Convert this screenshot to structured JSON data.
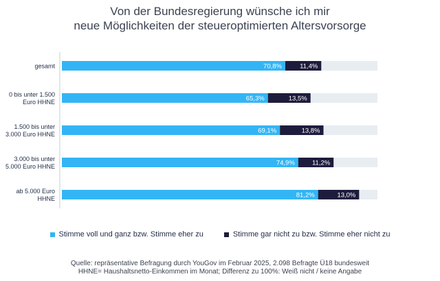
{
  "title": {
    "line1": "Von der Bundesregierung wünsche ich mir",
    "line2": "neue Möglichkeiten der steueroptimierten Altersvorsorge"
  },
  "chart_data": {
    "type": "bar",
    "orientation": "horizontal",
    "stacked": true,
    "categories": [
      [
        "gesamt"
      ],
      [
        "0 bis unter 1.500",
        "Euro HHNE"
      ],
      [
        "1.500 bis unter",
        "3.000 Euro HHNE"
      ],
      [
        "3.000 bis unter",
        "5.000 Euro HHNE"
      ],
      [
        "ab 5.000 Euro",
        "HHNE"
      ]
    ],
    "series": [
      {
        "name": "Stimme voll und ganz bzw. Stimme eher zu",
        "color": "#33b5f5",
        "values": [
          70.8,
          65.3,
          69.1,
          74.9,
          81.2
        ],
        "labels": [
          "70,8%",
          "65,3%",
          "69,1%",
          "74,9%",
          "81,2%"
        ]
      },
      {
        "name": "Stimme gar nicht zu bzw. Stimme eher nicht zu",
        "color": "#1e1c3c",
        "values": [
          11.4,
          13.5,
          13.8,
          11.2,
          13.0
        ],
        "labels": [
          "11,4%",
          "13,5%",
          "13,8%",
          "11,2%",
          "13,0%"
        ]
      }
    ],
    "xlim": [
      0,
      100
    ],
    "track_color": "#e8edf2",
    "grid": false,
    "legend_position": "bottom"
  },
  "source": {
    "line1": "Quelle: repräsentative Befragung durch YouGov im Februar 2025, 2.098 Befragte Ü18 bundesweit",
    "line2": "HHNE= Haushaltsnetto-Einkommen im Monat; Differenz zu 100%: Weiß nicht / keine Angabe"
  }
}
